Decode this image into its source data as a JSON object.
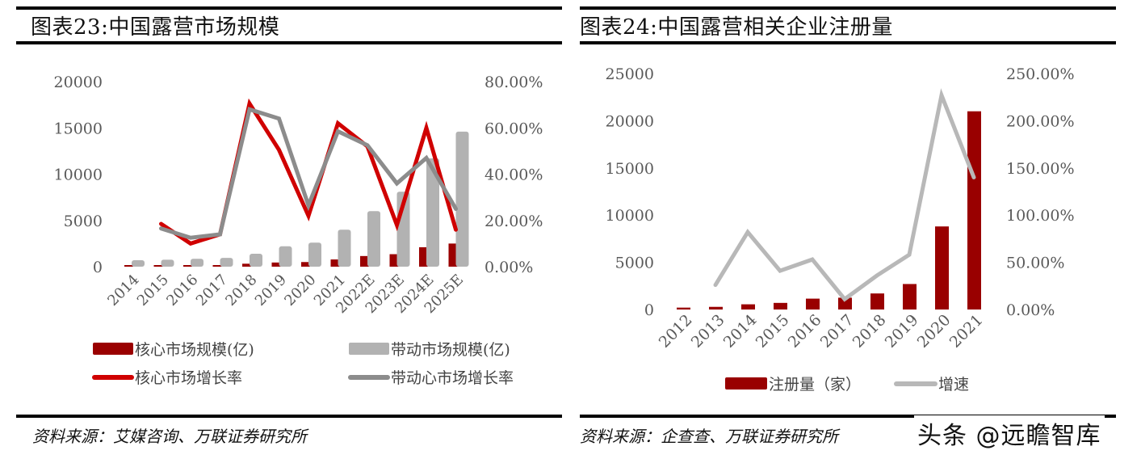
{
  "left_panel": {
    "title": "图表23:中国露营市场规模",
    "source": "资料来源：艾媒咨询、万联证券研究所",
    "legend": [
      {
        "label": "核心市场规模(亿)",
        "type": "bar",
        "color": "#9a0000"
      },
      {
        "label": "带动市场规模(亿)",
        "type": "bar",
        "color": "#b2b2b2"
      },
      {
        "label": "核心市场增长率",
        "type": "line",
        "color": "#d00000"
      },
      {
        "label": "带动心市场增长率",
        "type": "line",
        "color": "#8c8c8c"
      }
    ]
  },
  "right_panel": {
    "title": "图表24:中国露营相关企业注册量",
    "source": "资料来源：企查查、万联证券研究所",
    "legend": [
      {
        "label": "注册量（家）",
        "type": "bar",
        "color": "#990000"
      },
      {
        "label": "增速",
        "type": "line",
        "color": "#b8b8b8"
      }
    ]
  },
  "watermark": "头条 @远瞻智库",
  "chart_data": [
    {
      "type": "bar",
      "title": "图表23:中国露营市场规模",
      "categories": [
        "2014",
        "2015",
        "2016",
        "2017",
        "2018",
        "2019",
        "2020",
        "2021",
        "2022E",
        "2023E",
        "2024E",
        "2025E"
      ],
      "series": [
        {
          "name": "核心市场规模(亿)",
          "type": "bar",
          "axis": "left",
          "color": "#9a0000",
          "values": [
            100,
            120,
            140,
            160,
            320,
            450,
            500,
            780,
            1150,
            1350,
            2100,
            2500
          ]
        },
        {
          "name": "带动市场规模(亿)",
          "type": "bar",
          "axis": "left",
          "color": "#b2b2b2",
          "values": [
            700,
            750,
            850,
            950,
            1400,
            2200,
            2600,
            4000,
            6000,
            8100,
            11700,
            14600
          ]
        },
        {
          "name": "核心市场增长率",
          "type": "line",
          "axis": "right",
          "color": "#d00000",
          "values": [
            null,
            18.5,
            10.0,
            14.0,
            70.5,
            50.5,
            22.0,
            62.0,
            52.0,
            18.0,
            60.0,
            16.0
          ]
        },
        {
          "name": "带动心市场增长率",
          "type": "line",
          "axis": "right",
          "color": "#8c8c8c",
          "values": [
            null,
            16.5,
            12.5,
            14.0,
            68.0,
            64.0,
            26.5,
            58.5,
            52.5,
            36.0,
            47.0,
            25.0
          ]
        }
      ],
      "y_left": {
        "ticks": [
          "0",
          "5000",
          "10000",
          "15000",
          "20000"
        ],
        "range": [
          0,
          20000
        ]
      },
      "y_right": {
        "ticks": [
          "0.00%",
          "20.00%",
          "40.00%",
          "60.00%",
          "80.00%"
        ],
        "range": [
          0,
          80
        ]
      },
      "xlabel": "",
      "ylabel": "",
      "grid": false,
      "legend_position": "bottom"
    },
    {
      "type": "bar",
      "title": "图表24:中国露营相关企业注册量",
      "categories": [
        "2012",
        "2013",
        "2014",
        "2015",
        "2016",
        "2017",
        "2018",
        "2019",
        "2020",
        "2021"
      ],
      "series": [
        {
          "name": "注册量（家）",
          "type": "bar",
          "axis": "left",
          "color": "#990000",
          "values": [
            200,
            280,
            550,
            700,
            1150,
            1250,
            1700,
            2700,
            8800,
            21000
          ]
        },
        {
          "name": "增速",
          "type": "line",
          "axis": "right",
          "color": "#b8b8b8",
          "values": [
            null,
            26,
            82,
            41,
            53,
            11,
            36,
            58,
            227,
            140
          ]
        }
      ],
      "y_left": {
        "ticks": [
          "0",
          "5000",
          "10000",
          "15000",
          "20000",
          "25000"
        ],
        "range": [
          0,
          25000
        ]
      },
      "y_right": {
        "ticks": [
          "0.00%",
          "50.00%",
          "100.00%",
          "150.00%",
          "200.00%",
          "250.00%"
        ],
        "range": [
          0,
          250
        ]
      },
      "xlabel": "",
      "ylabel": "",
      "grid": false,
      "legend_position": "bottom"
    }
  ]
}
